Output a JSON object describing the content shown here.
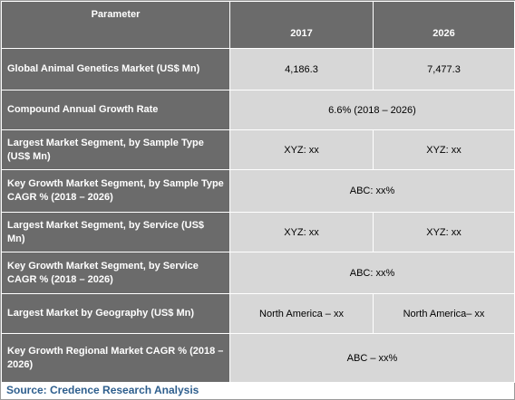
{
  "header": {
    "parameter": "Parameter",
    "year_a": "2017",
    "year_b": "2026"
  },
  "rows": [
    {
      "label": "Global Animal Genetics Market (US$ Mn)",
      "val_a": "4,186.3",
      "val_b": "7,477.3"
    },
    {
      "label": "Compound Annual Growth Rate",
      "merged": "6.6% (2018 – 2026)"
    },
    {
      "label": "Largest Market Segment, by Sample Type (US$ Mn)",
      "val_a": "XYZ: xx",
      "val_b": "XYZ: xx"
    },
    {
      "label": "Key Growth Market Segment, by Sample Type CAGR % (2018 – 2026)",
      "merged": "ABC: xx%"
    },
    {
      "label": "Largest Market Segment, by Service (US$ Mn)",
      "val_a": "XYZ: xx",
      "val_b": "XYZ: xx"
    },
    {
      "label": "Key Growth Market Segment, by Service CAGR % (2018 – 2026)",
      "merged": "ABC: xx%"
    },
    {
      "label": "Largest Market by Geography (US$ Mn)",
      "val_a": "North America – xx",
      "val_b": "North America– xx"
    },
    {
      "label": "Key Growth Regional Market CAGR % (2018 – 2026)",
      "merged": "ABC – xx%"
    }
  ],
  "source": "Source: Credence Research Analysis"
}
